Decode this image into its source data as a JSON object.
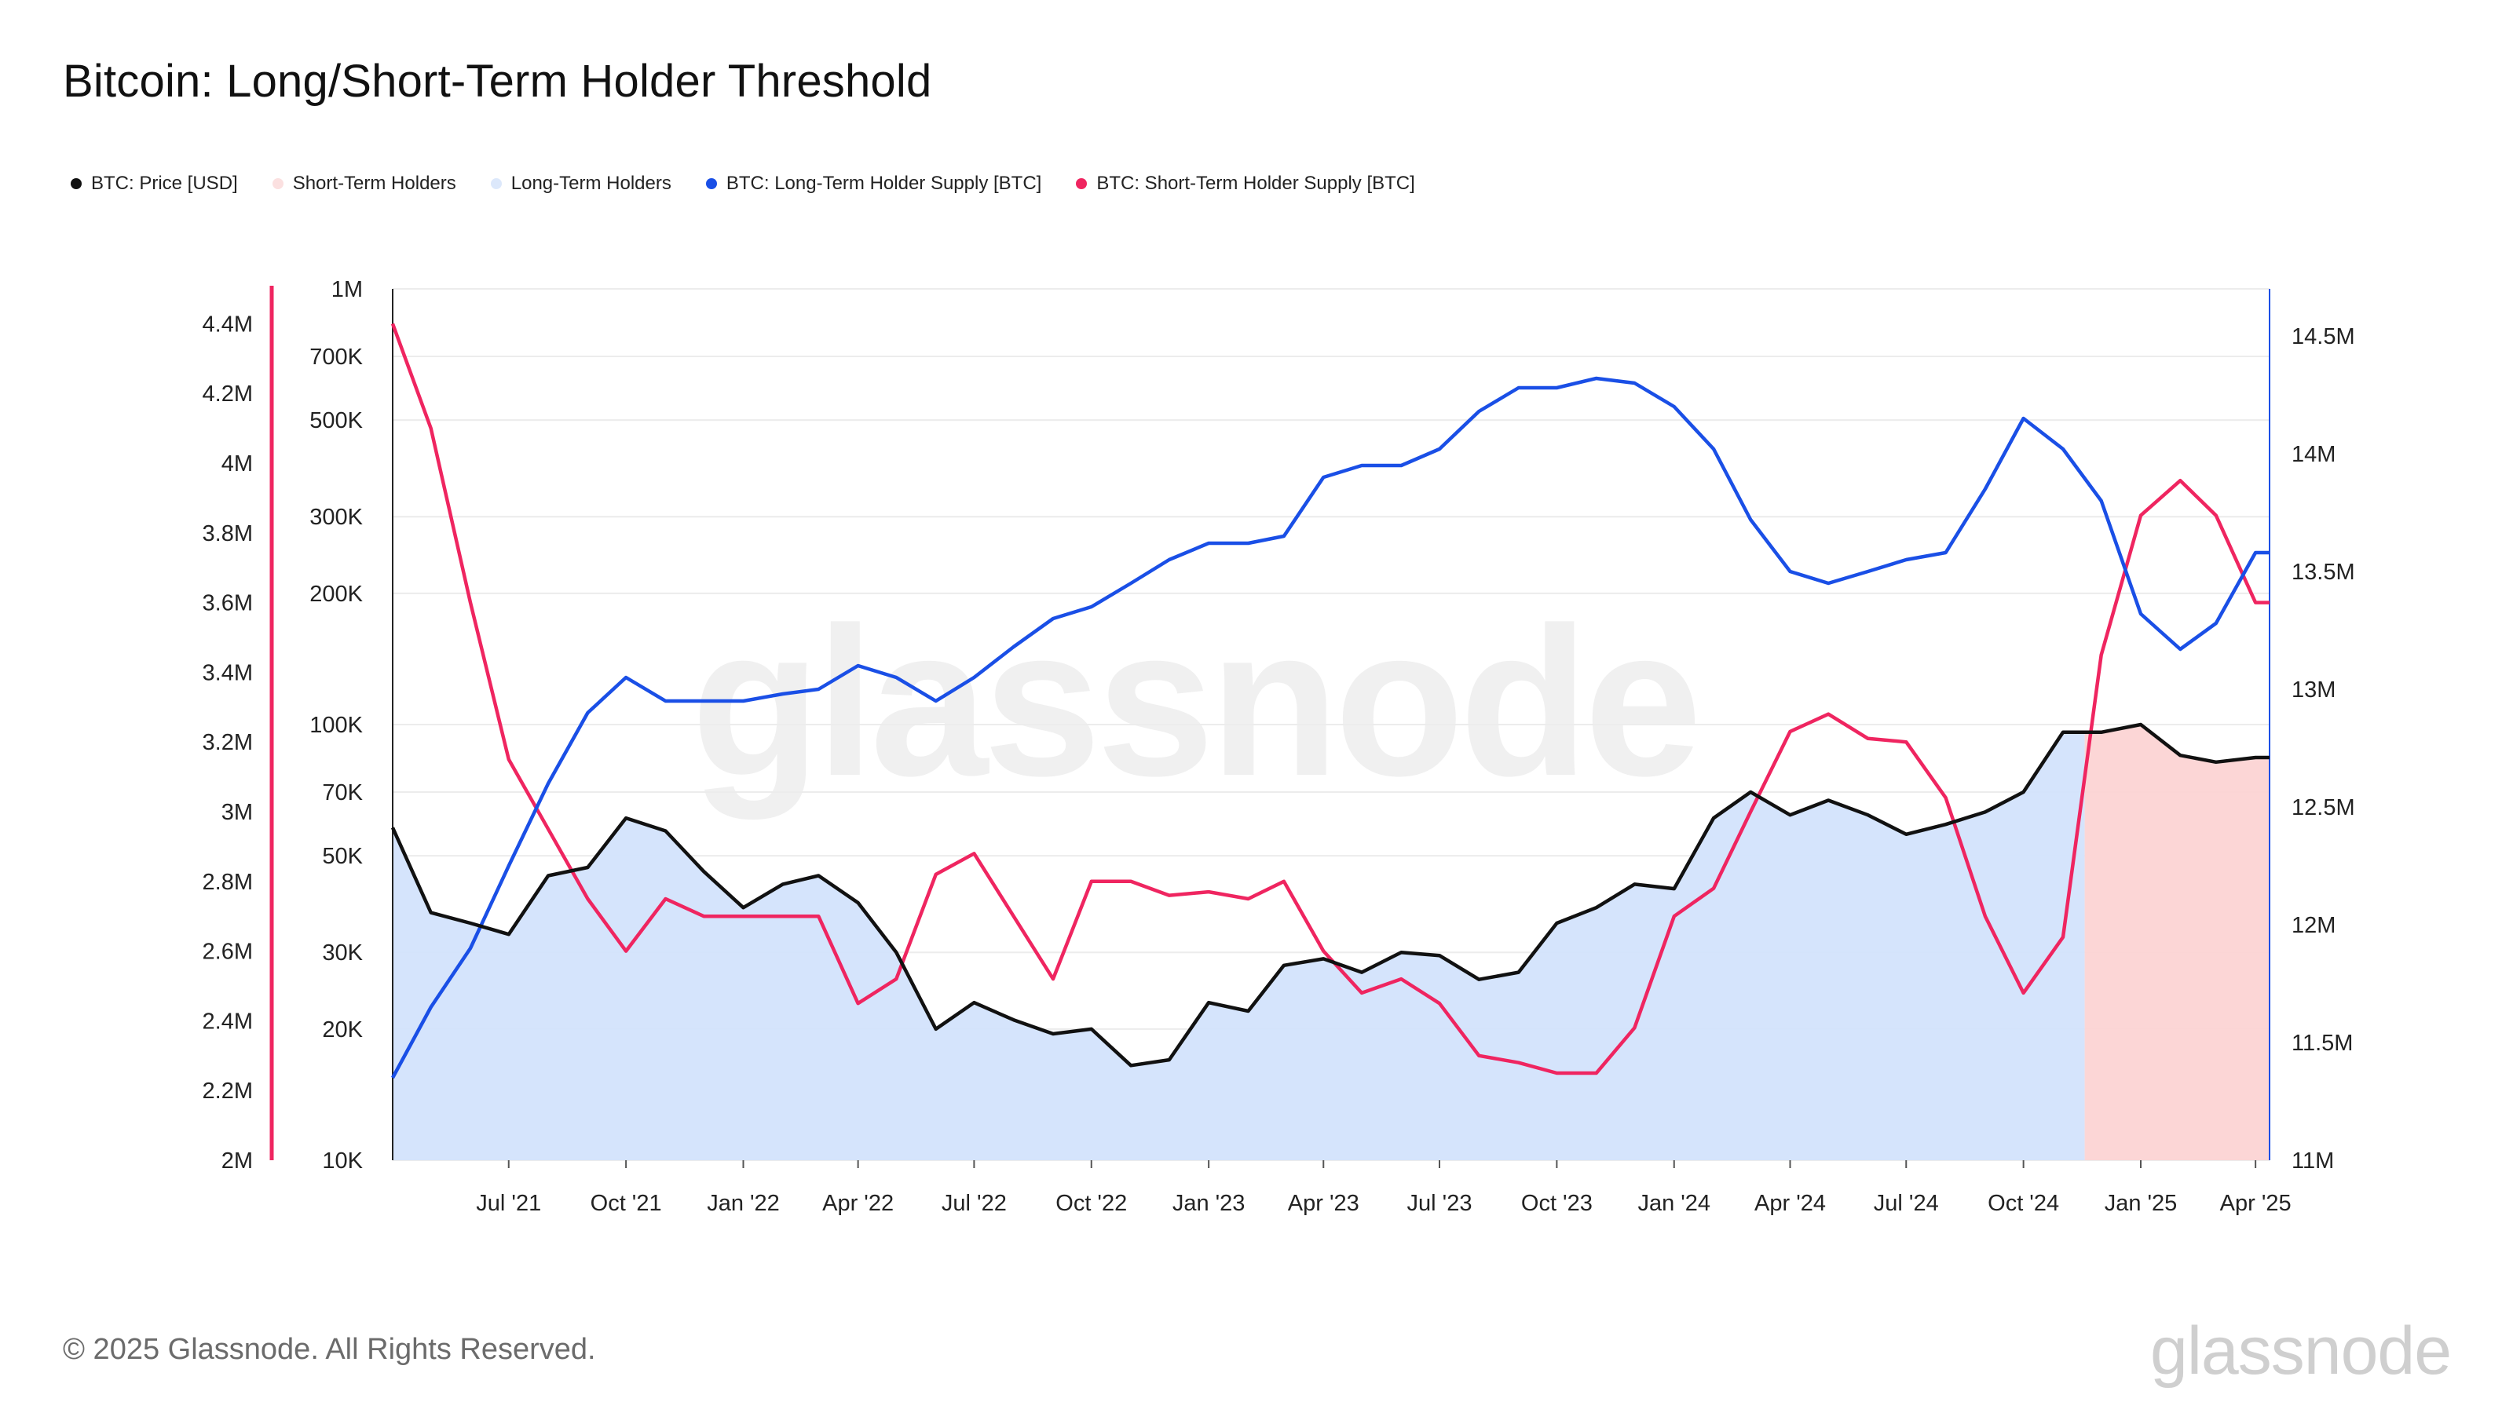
{
  "title": "Bitcoin: Long/Short-Term Holder Threshold",
  "copyright": "© 2025 Glassnode. All Rights Reserved.",
  "brand": "glassnode",
  "watermark": "glassnode",
  "colors": {
    "price": "#111111",
    "sth_area": "#fcd4d4",
    "lth_area": "#d3e3fc",
    "lth_supply": "#1a4fe6",
    "sth_supply": "#ef2560",
    "grid": "#ececec",
    "left_axis_accent": "#ef2560",
    "right_axis_accent": "#1a4fe6"
  },
  "legend": [
    {
      "label": "BTC: Price [USD]",
      "color": "#111111"
    },
    {
      "label": "Short-Term Holders",
      "color": "#fbe0e0"
    },
    {
      "label": "Long-Term Holders",
      "color": "#dce8fb"
    },
    {
      "label": "BTC: Long-Term Holder Supply [BTC]",
      "color": "#1a4fe6"
    },
    {
      "label": "BTC: Short-Term Holder Supply [BTC]",
      "color": "#ef2560"
    }
  ],
  "chart_data": {
    "type": "line",
    "x_dates": [
      "2021-04-01",
      "2021-05-01",
      "2021-06-01",
      "2021-07-01",
      "2021-08-01",
      "2021-09-01",
      "2021-10-01",
      "2021-11-01",
      "2021-12-01",
      "2022-01-01",
      "2022-02-01",
      "2022-03-01",
      "2022-04-01",
      "2022-05-01",
      "2022-06-01",
      "2022-07-01",
      "2022-08-01",
      "2022-09-01",
      "2022-10-01",
      "2022-11-01",
      "2022-12-01",
      "2023-01-01",
      "2023-02-01",
      "2023-03-01",
      "2023-04-01",
      "2023-05-01",
      "2023-06-01",
      "2023-07-01",
      "2023-08-01",
      "2023-09-01",
      "2023-10-01",
      "2023-11-01",
      "2023-12-01",
      "2024-01-01",
      "2024-02-01",
      "2024-03-01",
      "2024-04-01",
      "2024-05-01",
      "2024-06-01",
      "2024-07-01",
      "2024-08-01",
      "2024-09-01",
      "2024-10-01",
      "2024-11-01",
      "2024-12-01",
      "2025-01-01",
      "2025-02-01",
      "2025-03-01",
      "2025-04-01"
    ],
    "x_tick_labels": [
      "Jul '21",
      "Oct '21",
      "Jan '22",
      "Apr '22",
      "Jul '22",
      "Oct '22",
      "Jan '23",
      "Apr '23",
      "Jul '23",
      "Oct '23",
      "Jan '24",
      "Apr '24",
      "Jul '24",
      "Oct '24",
      "Jan '25",
      "Apr '25"
    ],
    "x_tick_dates": [
      "2021-07-01",
      "2021-10-01",
      "2022-01-01",
      "2022-04-01",
      "2022-07-01",
      "2022-10-01",
      "2023-01-01",
      "2023-04-01",
      "2023-07-01",
      "2023-10-01",
      "2024-01-01",
      "2024-04-01",
      "2024-07-01",
      "2024-10-01",
      "2025-01-01",
      "2025-04-01"
    ],
    "x_range": [
      "2021-04-01",
      "2025-04-12"
    ],
    "price_axis": {
      "scale": "log",
      "range": [
        10000,
        1000000
      ],
      "tick_labels": [
        "10K",
        "20K",
        "30K",
        "50K",
        "70K",
        "100K",
        "200K",
        "300K",
        "500K",
        "700K",
        "1M"
      ],
      "tick_values": [
        10000,
        20000,
        30000,
        50000,
        70000,
        100000,
        200000,
        300000,
        500000,
        700000,
        1000000
      ]
    },
    "sth_axis": {
      "scale": "linear",
      "range": [
        2000000,
        4500000
      ],
      "tick_labels": [
        "2M",
        "2.2M",
        "2.4M",
        "2.6M",
        "2.8M",
        "3M",
        "3.2M",
        "3.4M",
        "3.6M",
        "3.8M",
        "4M",
        "4.2M",
        "4.4M"
      ],
      "tick_values": [
        2000000,
        2200000,
        2400000,
        2600000,
        2800000,
        3000000,
        3200000,
        3400000,
        3600000,
        3800000,
        4000000,
        4200000,
        4400000
      ]
    },
    "lth_axis": {
      "scale": "linear",
      "range": [
        11000000,
        14700000
      ],
      "tick_labels": [
        "11M",
        "11.5M",
        "12M",
        "12.5M",
        "13M",
        "13.5M",
        "14M",
        "14.5M"
      ],
      "tick_values": [
        11000000,
        11500000,
        12000000,
        12500000,
        13000000,
        13500000,
        14000000,
        14500000
      ]
    },
    "series": [
      {
        "name": "BTC: Price [USD]",
        "axis": "price",
        "values": [
          58000,
          37000,
          35000,
          33000,
          45000,
          47000,
          61000,
          57000,
          46000,
          38000,
          43000,
          45000,
          39000,
          30000,
          20000,
          23000,
          21000,
          19500,
          20000,
          16500,
          17000,
          23000,
          22000,
          28000,
          29000,
          27000,
          30000,
          29500,
          26000,
          27000,
          35000,
          38000,
          43000,
          42000,
          61000,
          70000,
          62000,
          67000,
          62000,
          56000,
          59000,
          63000,
          70000,
          96000,
          96000,
          100000,
          85000,
          82000,
          84000
        ]
      },
      {
        "name": "BTC: Long-Term Holder Supply [BTC]",
        "axis": "lth",
        "values": [
          11350000,
          11650000,
          11900000,
          12250000,
          12600000,
          12900000,
          13050000,
          12950000,
          12950000,
          12950000,
          12980000,
          13000000,
          13100000,
          13050000,
          12950000,
          13050000,
          13180000,
          13300000,
          13350000,
          13450000,
          13550000,
          13620000,
          13620000,
          13650000,
          13900000,
          13950000,
          13950000,
          14020000,
          14180000,
          14280000,
          14280000,
          14320000,
          14300000,
          14200000,
          14020000,
          13720000,
          13500000,
          13450000,
          13500000,
          13550000,
          13580000,
          13850000,
          14150000,
          14020000,
          13800000,
          13320000,
          13170000,
          13280000,
          13580000
        ]
      },
      {
        "name": "BTC: Short-Term Holder Supply [BTC]",
        "axis": "sth",
        "values": [
          4400000,
          4100000,
          3600000,
          3150000,
          2950000,
          2750000,
          2600000,
          2750000,
          2700000,
          2700000,
          2700000,
          2700000,
          2450000,
          2520000,
          2820000,
          2880000,
          2700000,
          2520000,
          2800000,
          2800000,
          2760000,
          2770000,
          2750000,
          2800000,
          2600000,
          2480000,
          2520000,
          2450000,
          2300000,
          2280000,
          2250000,
          2250000,
          2380000,
          2700000,
          2780000,
          3000000,
          3230000,
          3280000,
          3210000,
          3200000,
          3040000,
          2700000,
          2480000,
          2640000,
          3450000,
          3850000,
          3950000,
          3850000,
          3600000
        ]
      }
    ],
    "holder_regions": [
      {
        "name": "Long-Term Holders",
        "from": "2021-04-01",
        "to": "2024-11-18"
      },
      {
        "name": "Short-Term Holders",
        "from": "2024-11-18",
        "to": "2025-04-12"
      }
    ]
  }
}
